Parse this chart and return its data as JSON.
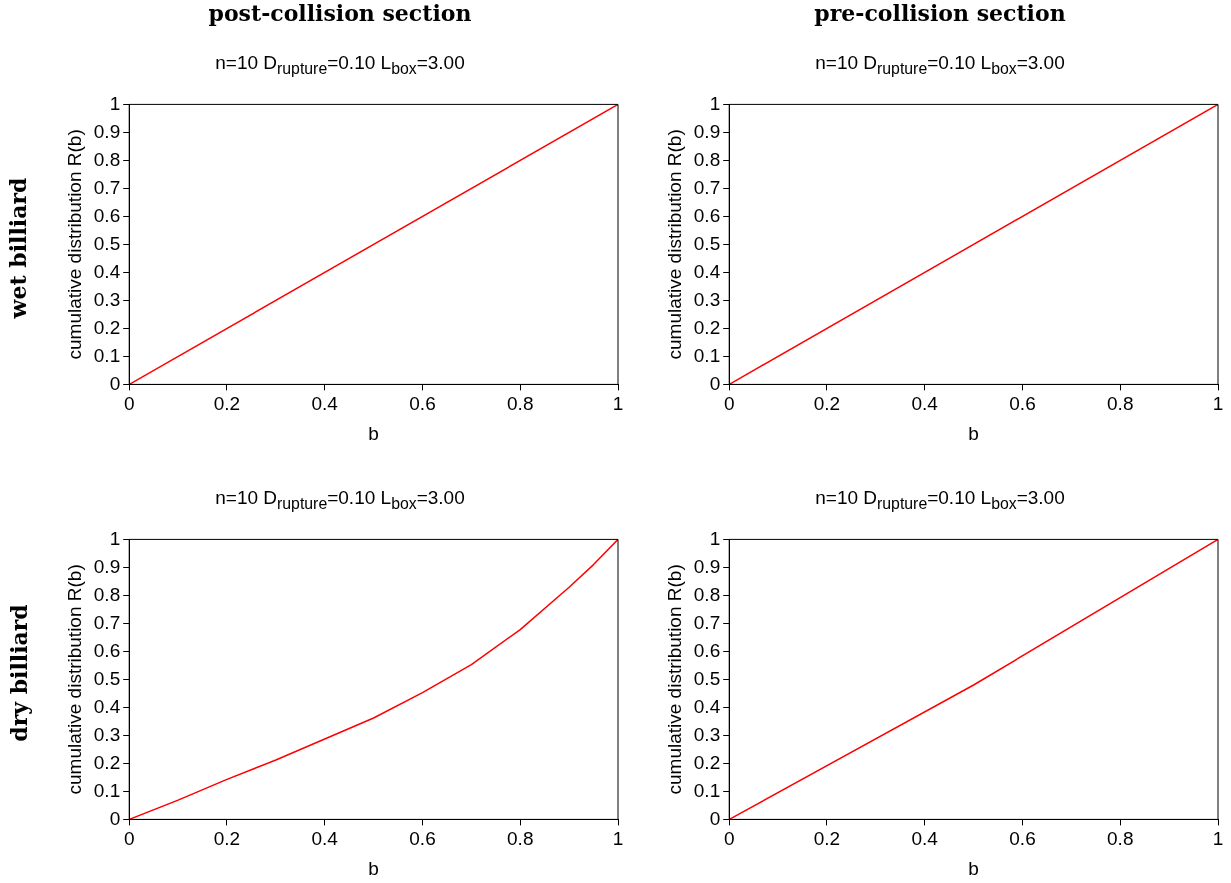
{
  "chart_data": [
    {
      "type": "line",
      "title": "post-collision section",
      "subtitle": "n=10 D$_{rupture}$=0.10 L$_{box}$=3.00",
      "annotations": [
        "wet billiard"
      ],
      "xlabel": "b",
      "ylabel": "cumulative distribution R(b)",
      "xlim": [
        0,
        1
      ],
      "ylim": [
        0,
        1
      ],
      "xticks": [
        0,
        0.2,
        0.4,
        0.6,
        0.8,
        1
      ],
      "yticks": [
        0,
        0.1,
        0.2,
        0.3,
        0.4,
        0.5,
        0.6,
        0.7,
        0.8,
        0.9,
        1
      ],
      "grid": false,
      "legend": false,
      "marker": "none",
      "line_style": "solid",
      "series": [
        {
          "color": "#ff0000",
          "x": [
            0,
            1
          ],
          "values": [
            0,
            1
          ]
        }
      ]
    },
    {
      "type": "line",
      "title": "pre-collision section",
      "subtitle": "n=10 D$_{rupture}$=0.10 L$_{box}$=3.00",
      "xlabel": "b",
      "ylabel": "cumulative distribution R(b)",
      "xlim": [
        0,
        1
      ],
      "ylim": [
        0,
        1
      ],
      "xticks": [
        0,
        0.2,
        0.4,
        0.6,
        0.8,
        1
      ],
      "yticks": [
        0,
        0.1,
        0.2,
        0.3,
        0.4,
        0.5,
        0.6,
        0.7,
        0.8,
        0.9,
        1
      ],
      "grid": false,
      "legend": false,
      "marker": "none",
      "line_style": "solid",
      "series": [
        {
          "color": "#ff0000",
          "x": [
            0,
            1
          ],
          "values": [
            0,
            1
          ]
        }
      ]
    },
    {
      "type": "line",
      "subtitle": "n=10 D$_{rupture}$=0.10 L$_{box}$=3.00",
      "annotations": [
        "dry billiard"
      ],
      "xlabel": "b",
      "ylabel": "cumulative distribution R(b)",
      "xlim": [
        0,
        1
      ],
      "ylim": [
        0,
        1
      ],
      "xticks": [
        0,
        0.2,
        0.4,
        0.6,
        0.8,
        1
      ],
      "yticks": [
        0,
        0.1,
        0.2,
        0.3,
        0.4,
        0.5,
        0.6,
        0.7,
        0.8,
        0.9,
        1
      ],
      "grid": false,
      "legend": false,
      "marker": "none",
      "line_style": "solid",
      "series": [
        {
          "color": "#ff0000",
          "x": [
            0,
            0.1,
            0.2,
            0.3,
            0.4,
            0.5,
            0.6,
            0.7,
            0.8,
            0.9,
            0.95,
            1
          ],
          "values": [
            0,
            0.069,
            0.143,
            0.212,
            0.287,
            0.362,
            0.453,
            0.553,
            0.678,
            0.829,
            0.91,
            1
          ]
        }
      ]
    },
    {
      "type": "line",
      "subtitle": "n=10 D$_{rupture}$=0.10 L$_{box}$=3.00",
      "xlabel": "b",
      "ylabel": "cumulative distribution R(b)",
      "xlim": [
        0,
        1
      ],
      "ylim": [
        0,
        1
      ],
      "xticks": [
        0,
        0.2,
        0.4,
        0.6,
        0.8,
        1
      ],
      "yticks": [
        0,
        0.1,
        0.2,
        0.3,
        0.4,
        0.5,
        0.6,
        0.7,
        0.8,
        0.9,
        1
      ],
      "grid": false,
      "legend": false,
      "marker": "none",
      "line_style": "solid",
      "series": [
        {
          "color": "#ff0000",
          "x": [
            0,
            0.5,
            1
          ],
          "values": [
            0,
            0.48,
            1
          ]
        }
      ]
    }
  ]
}
